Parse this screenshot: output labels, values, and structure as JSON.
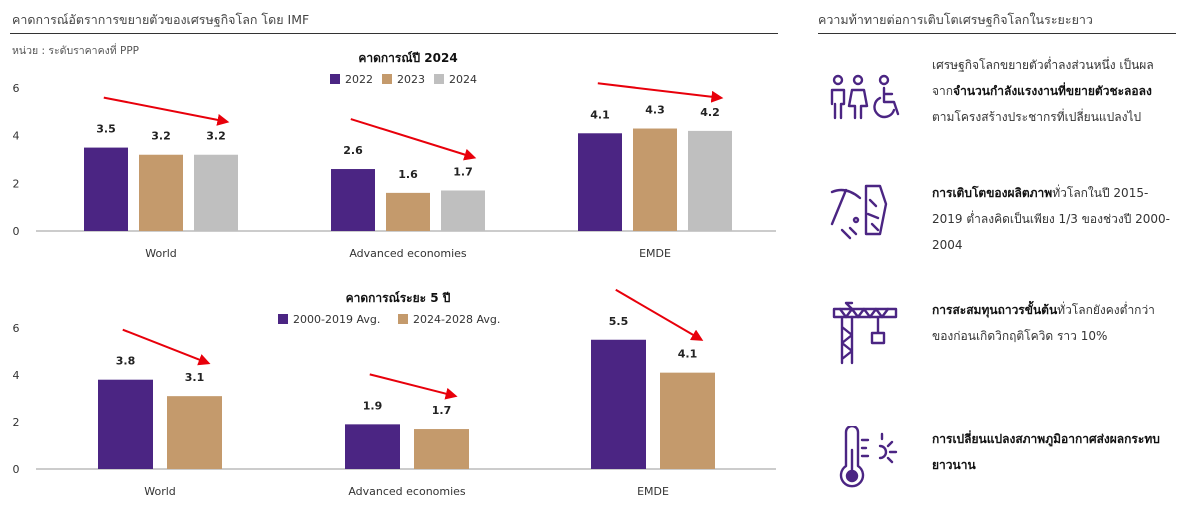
{
  "left_panel": {
    "title": "คาดการณ์อัตราการขยายตัวของเศรษฐกิจโลก โดย IMF",
    "unit": "หน่วย : ระดับราคาคงที่ PPP"
  },
  "right_panel": {
    "title": "ความท้าทายต่อการเติบโตเศรษฐกิจโลกในระยะยาว",
    "items": [
      {
        "icon": "people-accessibility-icon",
        "parts": [
          "เศรษฐกิจโลกขยายตัวต่ำลงส่วนหนึ่ง เป็นผลจาก",
          "จำนวนกำลังแรงงานที่ขยายตัวชะลอลง",
          "ตามโครงสร้างประชากรที่เปลี่ยนแปลงไป"
        ]
      },
      {
        "icon": "pickaxe-mining-icon",
        "parts": [
          "",
          "การเติบโตของผลิตภาพ",
          "ทั่วโลกในปี 2015-2019 ต่ำลงคิดเป็นเพียง 1/3 ของช่วงปี 2000-2004"
        ]
      },
      {
        "icon": "construction-crane-icon",
        "parts": [
          "",
          "การสะสมทุนถาวรขั้นต้น",
          "ทั่วโลกยังคงต่ำกว่าของก่อนเกิดวิกฤติโควิด ราว 10%"
        ]
      },
      {
        "icon": "thermometer-sun-icon",
        "parts": [
          "",
          "การเปลี่ยนแปลงสภาพภูมิอากาศส่งผลกระทบยาวนาน",
          ""
        ]
      }
    ]
  },
  "colors": {
    "c2022": "#4b2583",
    "c2023": "#c49a6c",
    "c2024": "#bfbfbf",
    "arrow": "#e8000b",
    "axis": "#999999"
  },
  "chart_data": [
    {
      "type": "bar",
      "title": "คาดการณ์ปี 2024",
      "categories": [
        "World",
        "Advanced economies",
        "EMDE"
      ],
      "series": [
        {
          "name": "2022",
          "values": [
            3.5,
            2.6,
            4.1
          ],
          "labels": [
            "3.5",
            "2.6",
            "4.1"
          ]
        },
        {
          "name": "2023",
          "values": [
            3.2,
            1.6,
            4.3
          ],
          "labels": [
            "3.2",
            "1.6",
            "4.3"
          ]
        },
        {
          "name": "2024",
          "values": [
            3.2,
            1.7,
            4.2
          ],
          "labels": [
            "3.2",
            "1.7",
            "4.2"
          ]
        }
      ],
      "yticks": [
        "0",
        "2",
        "4",
        "6"
      ],
      "ylim": [
        0,
        6
      ],
      "legend": "top-center",
      "annotations": "red downward/trend arrows above each category"
    },
    {
      "type": "bar",
      "title": "คาดการณ์ระยะ 5 ปี",
      "categories": [
        "World",
        "Advanced economies",
        "EMDE"
      ],
      "series": [
        {
          "name": "2000-2019 Avg.",
          "values": [
            3.8,
            1.9,
            5.5
          ],
          "labels": [
            "3.8",
            "1.9",
            "5.5"
          ]
        },
        {
          "name": "2024-2028 Avg.",
          "values": [
            3.1,
            1.7,
            4.1
          ],
          "labels": [
            "3.1",
            "1.7",
            "4.1"
          ]
        }
      ],
      "yticks": [
        "0",
        "2",
        "4",
        "6"
      ],
      "ylim": [
        0,
        6
      ],
      "legend": "top-center",
      "annotations": "red downward arrows above each category"
    }
  ]
}
